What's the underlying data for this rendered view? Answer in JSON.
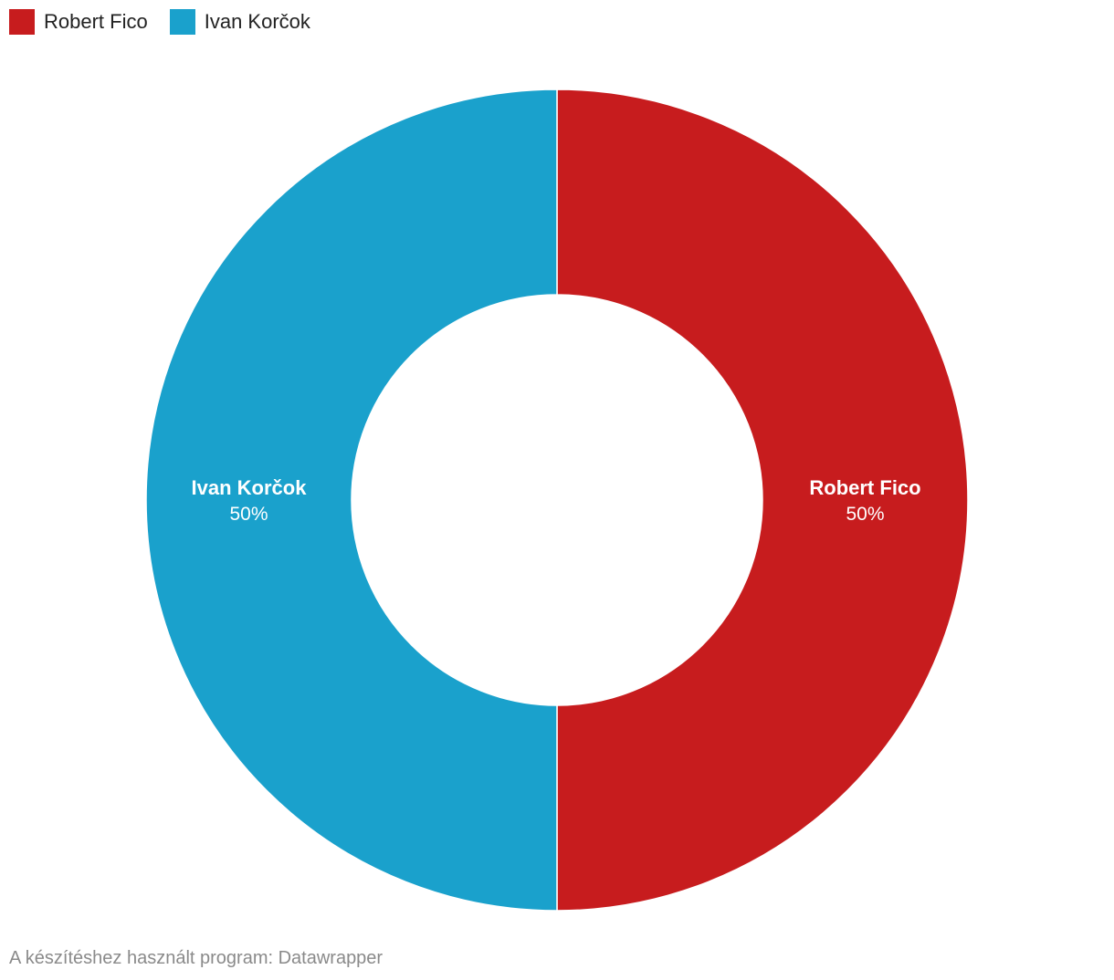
{
  "chart_data": {
    "type": "pie",
    "variant": "donut",
    "categories": [
      "Robert Fico",
      "Ivan Korčok"
    ],
    "values": [
      50,
      50
    ],
    "value_labels": [
      "50%",
      "50%"
    ],
    "colors": [
      "#c71c1e",
      "#1aa1cc"
    ],
    "legend_position": "top-left"
  },
  "legend": {
    "items": [
      {
        "label": "Robert Fico",
        "color": "#c71c1e"
      },
      {
        "label": "Ivan Korčok",
        "color": "#1aa1cc"
      }
    ]
  },
  "footer": {
    "credit": "A készítéshez használt program: Datawrapper"
  }
}
